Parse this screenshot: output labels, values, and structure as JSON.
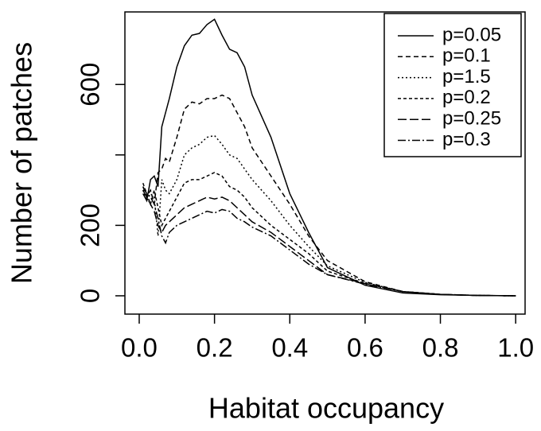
{
  "chart_data": {
    "type": "line",
    "xlabel": "Habitat occupancy",
    "ylabel": "Number of patches",
    "x": [
      0.01,
      0.02,
      0.03,
      0.04,
      0.05,
      0.06,
      0.07,
      0.08,
      0.1,
      0.12,
      0.14,
      0.16,
      0.18,
      0.2,
      0.22,
      0.24,
      0.26,
      0.28,
      0.3,
      0.35,
      0.4,
      0.45,
      0.5,
      0.6,
      0.7,
      0.8,
      0.9,
      1.0
    ],
    "series": [
      {
        "name": "p=0.05",
        "color": "#000000",
        "dash": "none",
        "values": [
          290,
          270,
          330,
          340,
          310,
          480,
          520,
          560,
          650,
          710,
          740,
          745,
          770,
          785,
          740,
          700,
          690,
          650,
          570,
          450,
          290,
          180,
          80,
          30,
          8,
          3,
          1,
          0
        ]
      },
      {
        "name": "p=0.1",
        "color": "#000000",
        "dash": "6 4",
        "values": [
          310,
          280,
          300,
          260,
          350,
          360,
          390,
          380,
          450,
          530,
          550,
          545,
          560,
          560,
          570,
          560,
          520,
          480,
          420,
          340,
          260,
          170,
          100,
          40,
          12,
          4,
          1,
          0
        ]
      },
      {
        "name": "p=1.5",
        "color": "#000000",
        "dash": "2 3",
        "values": [
          300,
          270,
          290,
          280,
          170,
          330,
          300,
          290,
          330,
          400,
          420,
          430,
          450,
          455,
          430,
          400,
          390,
          360,
          330,
          270,
          200,
          140,
          85,
          38,
          12,
          4,
          1,
          0
        ]
      },
      {
        "name": "p=0.2",
        "color": "#000000",
        "dash": "4 3",
        "values": [
          320,
          290,
          260,
          300,
          250,
          200,
          220,
          240,
          280,
          320,
          330,
          330,
          340,
          350,
          340,
          310,
          300,
          280,
          250,
          200,
          160,
          120,
          70,
          35,
          12,
          4,
          1,
          0
        ]
      },
      {
        "name": "p=0.25",
        "color": "#000000",
        "dash": "11 4",
        "values": [
          300,
          280,
          260,
          240,
          200,
          180,
          200,
          210,
          230,
          250,
          260,
          270,
          280,
          275,
          280,
          270,
          250,
          230,
          210,
          180,
          140,
          100,
          60,
          35,
          12,
          4,
          1,
          0
        ]
      },
      {
        "name": "p=0.3",
        "color": "#000000",
        "dash": "10 3 2 3",
        "values": [
          310,
          290,
          280,
          260,
          220,
          170,
          150,
          180,
          200,
          210,
          220,
          230,
          240,
          235,
          245,
          240,
          220,
          210,
          195,
          170,
          130,
          90,
          60,
          33,
          12,
          4,
          1,
          0
        ]
      }
    ],
    "xlim": [
      -0.038,
      1.025
    ],
    "ylim": [
      -52,
      806
    ],
    "xticks": [
      {
        "value": 0,
        "label": "0.0"
      },
      0.2,
      0.4,
      0.6,
      0.8,
      {
        "value": 1,
        "label": "1.0"
      }
    ],
    "yticks": [
      0,
      200,
      {
        "value": 400,
        "label": null
      },
      600
    ],
    "legend": "top-right"
  }
}
